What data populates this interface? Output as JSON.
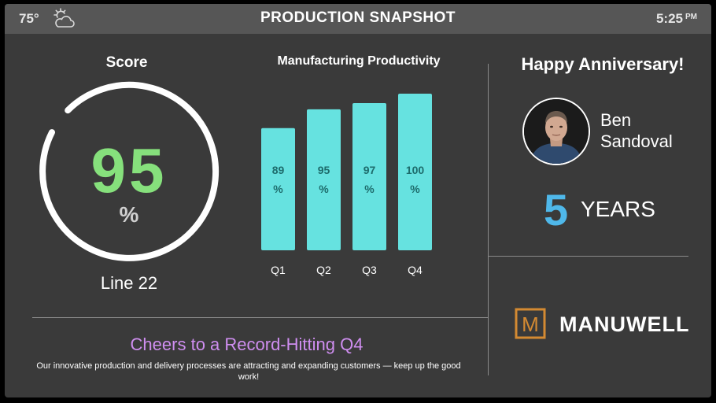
{
  "header": {
    "temperature": "75°",
    "weather_icon": "partly-cloudy-icon",
    "title": "PRODUCTION SNAPSHOT",
    "time": "5:25",
    "ampm": "PM"
  },
  "score": {
    "title": "Score",
    "value": "95",
    "unit": "%",
    "label": "Line 22",
    "gauge_fraction": 0.95,
    "colors": {
      "value": "#86e07c",
      "ring": "#ffffff"
    }
  },
  "chart_data": {
    "type": "bar",
    "title": "Manufacturing Productivity",
    "categories": [
      "Q1",
      "Q2",
      "Q3",
      "Q4"
    ],
    "values": [
      89,
      95,
      97,
      100
    ],
    "value_labels": [
      [
        "89",
        "%"
      ],
      [
        "95",
        "%"
      ],
      [
        "97",
        "%"
      ],
      [
        "100",
        "%"
      ]
    ],
    "ylim": [
      0,
      100
    ],
    "xlabel": "",
    "ylabel": "",
    "grid": false,
    "colors": {
      "bar": "#66e2e0",
      "bar_label": "#1d6b6b"
    }
  },
  "message": {
    "headline": "Cheers to a Record-Hitting Q4",
    "body": "Our innovative production and delivery processes are attracting and expanding customers — keep up the good work!"
  },
  "anniversary": {
    "title": "Happy Anniversary!",
    "first_name": "Ben",
    "last_name": "Sandoval",
    "years": "5",
    "years_label": "YEARS",
    "years_color": "#4fb8ea"
  },
  "brand": {
    "logo_letter": "M",
    "name": "MANUWELL",
    "accent": "#d48a32"
  }
}
